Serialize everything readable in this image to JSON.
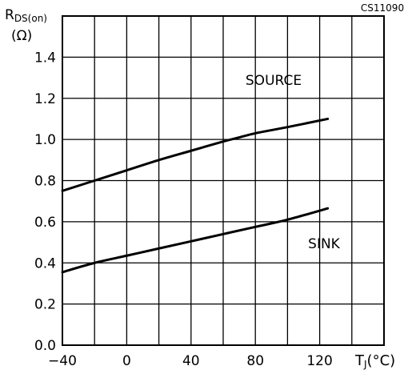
{
  "chart_data": {
    "type": "line",
    "figure_code": "CS11090",
    "ylabel_main": "R",
    "ylabel_sub": "DS(on)",
    "ylabel_unit": "(Ω)",
    "xlabel_main": "T",
    "xlabel_sub": "J",
    "xlabel_unit": "(°C)",
    "xlim": [
      -40,
      160
    ],
    "ylim": [
      0,
      1.6
    ],
    "x_ticks": [
      -40,
      0,
      40,
      80,
      120
    ],
    "x_tick_labels": [
      "−40",
      "0",
      "40",
      "80",
      "120"
    ],
    "y_ticks": [
      0,
      0.2,
      0.4,
      0.6,
      0.8,
      1.0,
      1.2,
      1.4
    ],
    "y_tick_labels": [
      "0.0",
      "0.2",
      "0.4",
      "0.6",
      "0.8",
      "1.0",
      "1.2",
      "1.4"
    ],
    "grid": true,
    "legend": "none",
    "series": [
      {
        "name": "SOURCE",
        "label_at": [
          0,
          0
        ],
        "x": [
          -40,
          -20,
          0,
          20,
          40,
          60,
          70,
          80,
          100,
          125
        ],
        "y": [
          0.75,
          0.8,
          0.85,
          0.9,
          0.945,
          0.99,
          1.01,
          1.03,
          1.06,
          1.1
        ]
      },
      {
        "name": "SINK",
        "x": [
          -40,
          -20,
          0,
          20,
          40,
          60,
          80,
          100,
          125
        ],
        "y": [
          0.355,
          0.4,
          0.435,
          0.47,
          0.505,
          0.54,
          0.575,
          0.61,
          0.665
        ]
      }
    ]
  }
}
